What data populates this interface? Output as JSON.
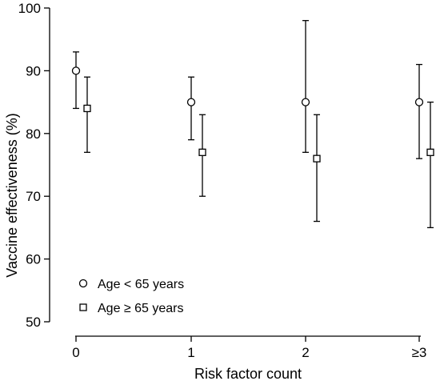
{
  "chart_data": {
    "type": "scatter",
    "xlabel": "Risk factor count",
    "ylabel": "Vaccine effectiveness (%)",
    "categories": [
      "0",
      "1",
      "2",
      "≥3"
    ],
    "yticks": [
      "50",
      "60",
      "70",
      "80",
      "90",
      "100"
    ],
    "ylim": [
      50,
      100
    ],
    "grid": false,
    "legend_position": "bottom-left",
    "series": [
      {
        "name": "Age < 65 years",
        "marker": "circle",
        "values": [
          90,
          85,
          85,
          85
        ],
        "lower": [
          84,
          79,
          77,
          76
        ],
        "upper": [
          93,
          89,
          98,
          91
        ]
      },
      {
        "name": "Age ≥ 65 years",
        "marker": "square",
        "values": [
          84,
          77,
          76,
          77
        ],
        "lower": [
          77,
          70,
          66,
          65
        ],
        "upper": [
          89,
          83,
          83,
          85
        ]
      }
    ]
  }
}
